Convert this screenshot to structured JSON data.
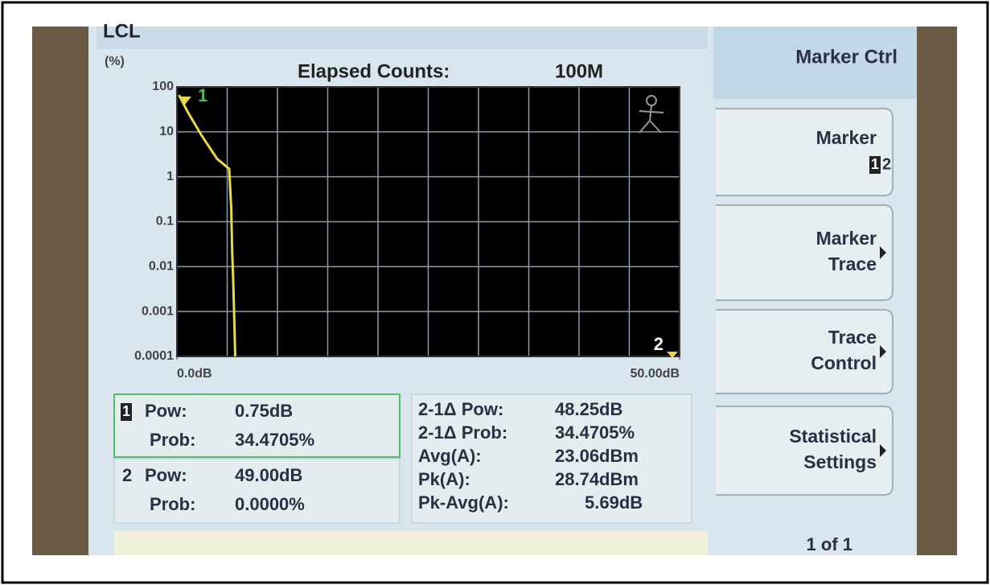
{
  "header": {
    "mode": "LCL",
    "y_unit": "(%)",
    "title": "Elapsed Counts:",
    "count": "100M"
  },
  "chart_data": {
    "type": "line",
    "x": [
      0.2,
      1.1,
      2.5,
      4.0,
      5.2,
      5.4,
      5.5,
      5.6,
      5.8
    ],
    "values": [
      66,
      27,
      8,
      2.5,
      1.5,
      0.2,
      0.02,
      0.005,
      0.0001
    ],
    "color": "#e8d84a",
    "log_y": true,
    "grid": true,
    "grid_color": "#8a9aaa",
    "x_divisions": 10,
    "xlim": [
      0,
      50
    ],
    "xticks": [
      {
        "value": 0,
        "label": "0.0dB"
      },
      {
        "value": 50,
        "label": "50.00dB"
      }
    ],
    "ylim": [
      0.0001,
      100
    ],
    "yticks": [
      100,
      10,
      1,
      0.1,
      0.01,
      0.001,
      0.0001
    ]
  },
  "markers": [
    {
      "label": "1"
    },
    {
      "label": "2"
    }
  ],
  "readout": {
    "marker1": {
      "id": "1",
      "pow_label": "Pow:",
      "pow": "0.75dB",
      "prob_label": "Prob:",
      "prob": "34.4705%"
    },
    "marker2": {
      "id": "2",
      "pow_label": "Pow:",
      "pow": "49.00dB",
      "prob_label": "Prob:",
      "prob": "0.0000%"
    },
    "stats": [
      {
        "label": "2-1Δ Pow:",
        "value": "48.25dB"
      },
      {
        "label": "2-1Δ Prob:",
        "value": "34.4705%"
      },
      {
        "label": "Avg(A):",
        "value": "23.06dBm"
      },
      {
        "label": "Pk(A):",
        "value": "28.74dBm"
      },
      {
        "label": "Pk-Avg(A):",
        "value": "5.69dB"
      }
    ]
  },
  "softkeys": {
    "title": "Marker Ctrl",
    "buttons": [
      {
        "lines": [
          "Marker"
        ],
        "options": [
          "1",
          "2"
        ]
      },
      {
        "lines": [
          "Marker",
          "Trace"
        ]
      },
      {
        "lines": [
          "Trace",
          "Control"
        ]
      },
      {
        "lines": [
          "Statistical",
          "Settings"
        ]
      }
    ],
    "page": "1 of 1"
  }
}
